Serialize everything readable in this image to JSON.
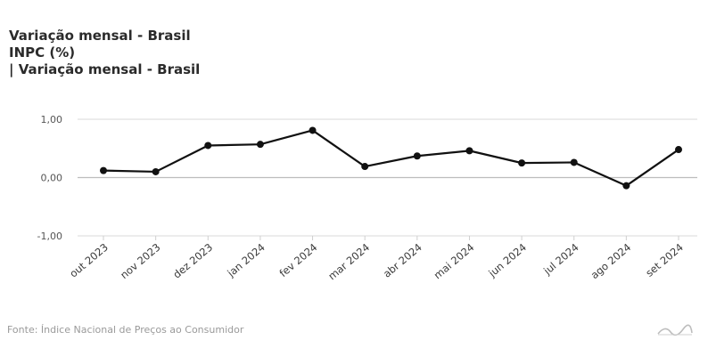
{
  "title_lines": [
    "Variação mensal - Brasil",
    "INPC (%)",
    "| Variação mensal - Brasil"
  ],
  "source": "Fonte: Índice Nacional de Preços ao Consumidor",
  "colors": {
    "line": "#111111",
    "grid": "#d9d9d9",
    "zero_line": "#bdbdbd",
    "text": "#2b2b2b"
  },
  "chart_data": {
    "type": "line",
    "title": "Variação mensal - Brasil",
    "categories": [
      "out 2023",
      "nov 2023",
      "dez 2023",
      "jan 2024",
      "fev 2024",
      "mar 2024",
      "abr 2024",
      "mai 2024",
      "jun 2024",
      "jul 2024",
      "ago 2024",
      "set 2024"
    ],
    "series": [
      {
        "values": [
          0.12,
          0.1,
          0.55,
          0.57,
          0.81,
          0.19,
          0.37,
          0.46,
          0.25,
          0.26,
          -0.14,
          0.48
        ]
      }
    ],
    "y_ticks": [
      "1,00",
      "0,00",
      "-1,00"
    ],
    "ylim": [
      -1,
      1
    ],
    "grid": true,
    "legend": "none"
  }
}
